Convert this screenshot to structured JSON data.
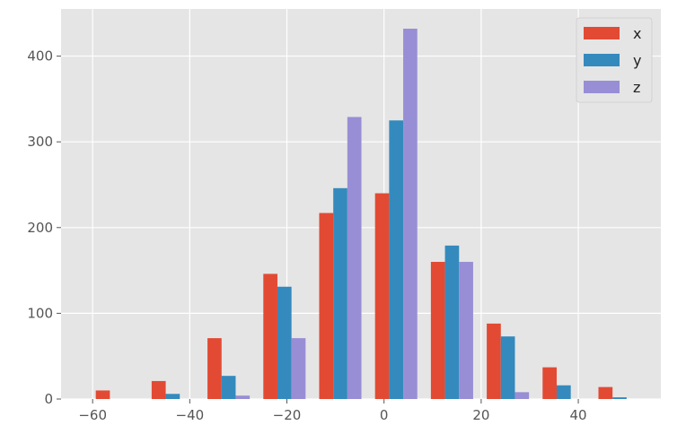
{
  "chart_data": {
    "type": "bar",
    "style": "ggplot",
    "grid": true,
    "legend_position": "top-right",
    "xlim": [
      -66.5,
      57
    ],
    "ylim": [
      0,
      455
    ],
    "xticks": [
      -60,
      -40,
      -20,
      0,
      20,
      40
    ],
    "xtick_labels": [
      "−60",
      "−40",
      "−20",
      "0",
      "20",
      "40"
    ],
    "yticks": [
      0,
      100,
      200,
      300,
      400
    ],
    "ytick_labels": [
      "0",
      "100",
      "200",
      "300",
      "400"
    ],
    "bin_centers": [
      -55,
      -43.5,
      -32,
      -20.5,
      -9,
      2.5,
      14,
      25.5,
      37,
      48.5
    ],
    "bar_width": 2.9,
    "series": [
      {
        "name": "x",
        "color": "#E24A33",
        "values": [
          10,
          21,
          71,
          146,
          217,
          240,
          160,
          88,
          37,
          14
        ]
      },
      {
        "name": "y",
        "color": "#348ABD",
        "values": [
          0,
          6,
          27,
          131,
          246,
          325,
          179,
          73,
          16,
          2
        ]
      },
      {
        "name": "z",
        "color": "#988ED5",
        "values": [
          0,
          0,
          4,
          71,
          329,
          432,
          160,
          8,
          0,
          0
        ]
      }
    ]
  }
}
